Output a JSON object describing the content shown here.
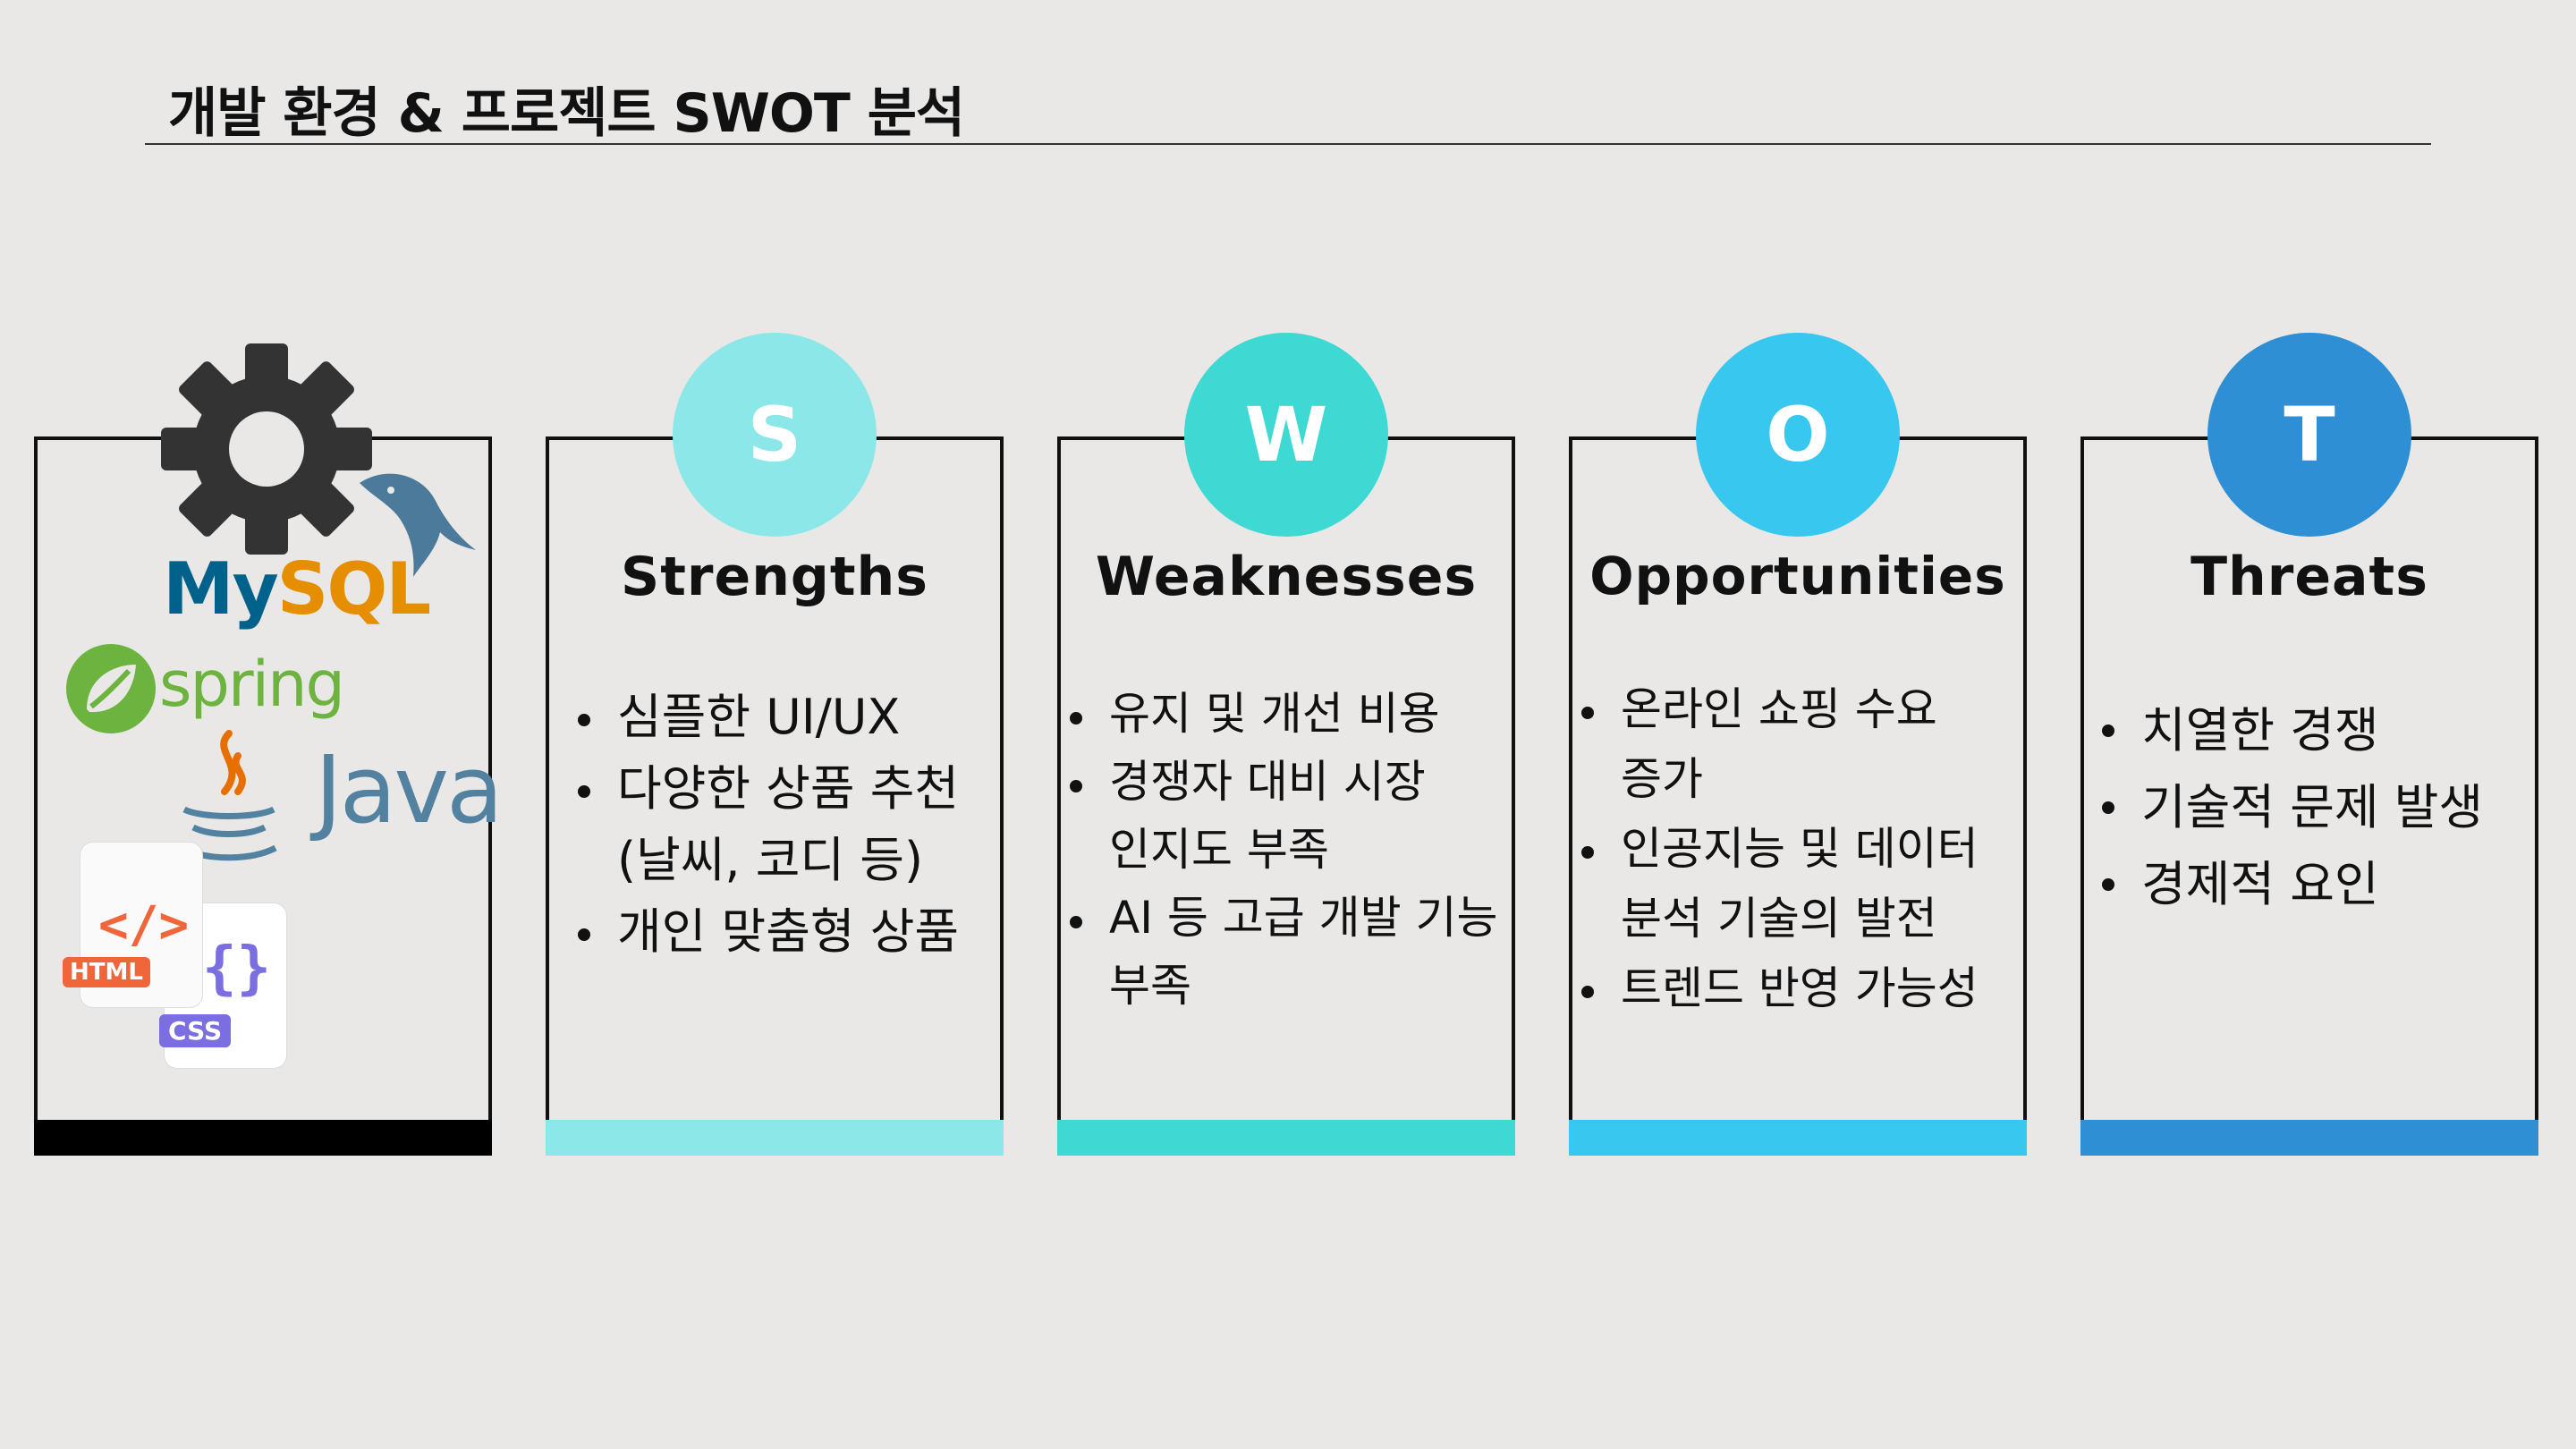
{
  "title": "개발 환경 & 프로젝트 SWOT 분석",
  "tech_logos": {
    "gear_icon": "gear-icon",
    "mysql": "MySQL",
    "spring": "spring",
    "java": "Java",
    "html": "HTML",
    "css": "CSS"
  },
  "swot": [
    {
      "letter": "S",
      "heading": "Strengths",
      "color": "#8ce8e8",
      "items": [
        "심플한 UI/UX",
        "다양한 상품 추천\n(날씨, 코디 등)",
        "개인 맞춤형 상품"
      ]
    },
    {
      "letter": "W",
      "heading": "Weaknesses",
      "color": "#3fd9d4",
      "items": [
        "유지 및 개선 비용",
        "경쟁자 대비 시장\n인지도 부족",
        "AI 등 고급 개발 기능\n부족"
      ]
    },
    {
      "letter": "O",
      "heading": "Opportunities",
      "color": "#38c8ef",
      "items": [
        "온라인 쇼핑 수요\n증가",
        "인공지능 및 데이터\n분석 기술의 발전",
        "트렌드 반영 가능성"
      ]
    },
    {
      "letter": "T",
      "heading": "Threats",
      "color": "#2e8fd4",
      "items": [
        "치열한 경쟁",
        "기술적 문제 발생",
        "경제적 요인"
      ]
    }
  ]
}
